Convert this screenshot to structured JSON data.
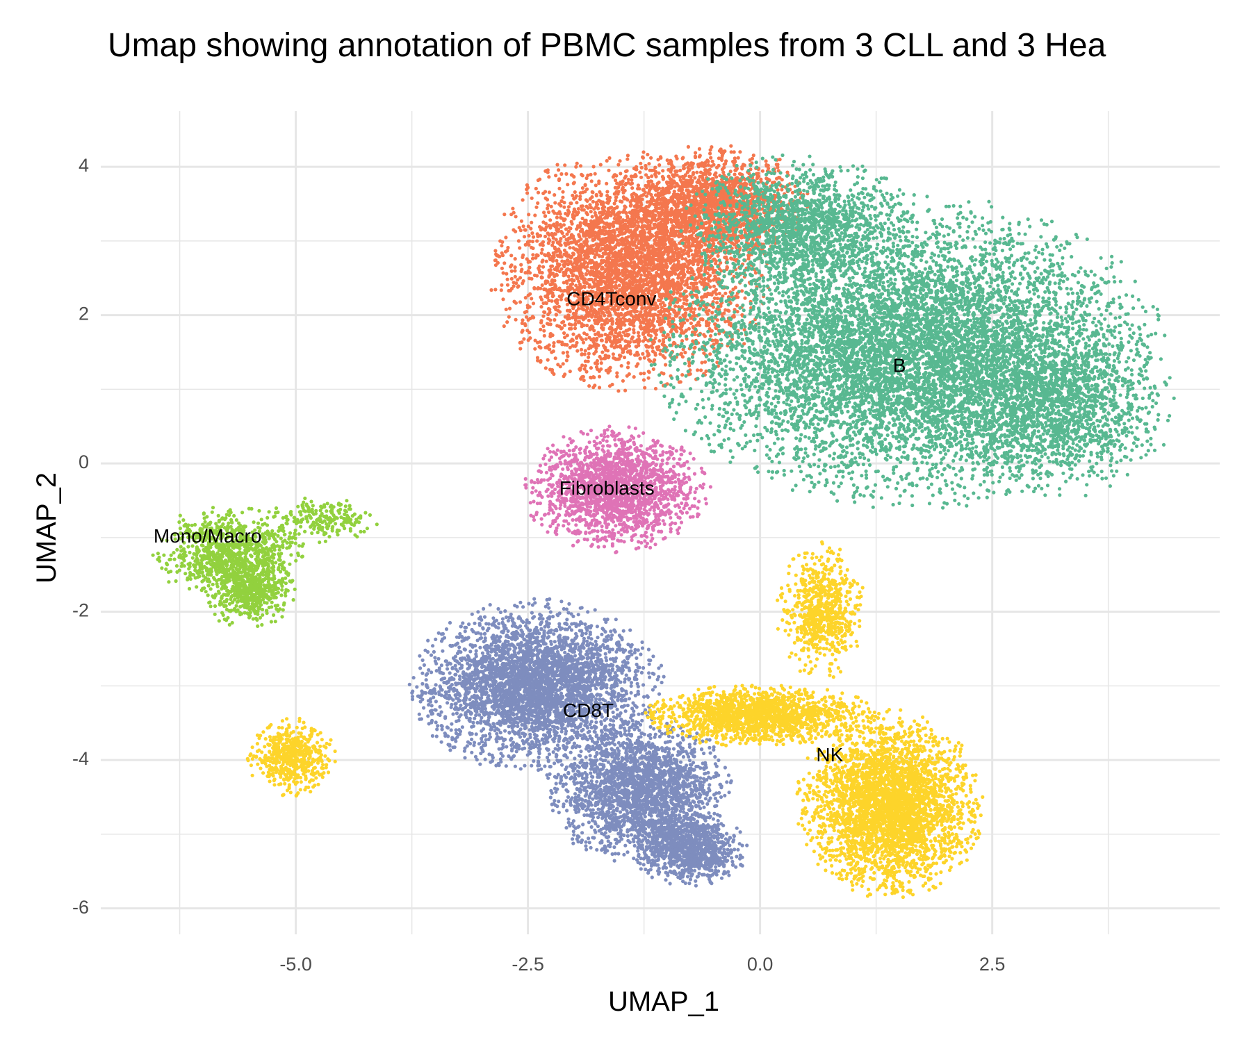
{
  "chart_data": {
    "type": "scatter",
    "title": "Umap showing annotation of PBMC samples from 3 CLL and 3 Hea",
    "xlabel": "UMAP_1",
    "ylabel": "UMAP_2",
    "xlim": [
      -7.1,
      4.95
    ],
    "ylim": [
      -6.35,
      4.75
    ],
    "x_ticks": [
      -5.0,
      -2.5,
      0.0,
      2.5
    ],
    "x_tick_labels": [
      "-5.0",
      "-2.5",
      "0.0",
      "2.5"
    ],
    "y_ticks": [
      -6,
      -4,
      -2,
      0,
      2,
      4
    ],
    "y_tick_labels": [
      "-6",
      "-4",
      "-2",
      "0",
      "2",
      "4"
    ],
    "grid": true,
    "legend": "none",
    "colors": {
      "CD4Tconv": "#F4774E",
      "B": "#58B891",
      "Fibroblasts": "#DF73B6",
      "Mono/Macro": "#92D13E",
      "CD8T": "#7E8DBE",
      "NK": "#FDD42A",
      "grid": "#e6e6e6",
      "axis_text": "#4d4d4d"
    },
    "series": [
      {
        "name": "CD4Tconv",
        "label_pos": [
          -1.6,
          2.2
        ],
        "regions": [
          {
            "cx": -1.4,
            "cy": 2.6,
            "rx": 1.45,
            "ry": 1.55,
            "n": 4200
          },
          {
            "cx": -0.5,
            "cy": 3.5,
            "rx": 1.0,
            "ry": 0.75,
            "n": 1500
          }
        ]
      },
      {
        "name": "B",
        "label_pos": [
          1.5,
          1.3
        ],
        "regions": [
          {
            "cx": 1.6,
            "cy": 1.5,
            "rx": 2.6,
            "ry": 2.0,
            "n": 7500
          },
          {
            "cx": 0.4,
            "cy": 3.2,
            "rx": 1.2,
            "ry": 0.9,
            "n": 1500
          },
          {
            "cx": 3.2,
            "cy": 0.8,
            "rx": 1.2,
            "ry": 1.2,
            "n": 1500
          }
        ]
      },
      {
        "name": "Fibroblasts",
        "label_pos": [
          -1.65,
          -0.35
        ],
        "regions": [
          {
            "cx": -1.55,
            "cy": -0.35,
            "rx": 0.95,
            "ry": 0.8,
            "n": 1900
          }
        ]
      },
      {
        "name": "Mono/Macro",
        "label_pos": [
          -5.95,
          -1.0
        ],
        "regions": [
          {
            "cx": -5.7,
            "cy": -1.2,
            "rx": 0.8,
            "ry": 0.6,
            "n": 900
          },
          {
            "cx": -5.5,
            "cy": -1.7,
            "rx": 0.5,
            "ry": 0.5,
            "n": 500
          },
          {
            "cx": -4.7,
            "cy": -0.75,
            "rx": 0.6,
            "ry": 0.3,
            "n": 200
          }
        ]
      },
      {
        "name": "CD8T",
        "label_pos": [
          -1.85,
          -3.35
        ],
        "regions": [
          {
            "cx": -2.4,
            "cy": -3.0,
            "rx": 1.3,
            "ry": 1.1,
            "n": 3600
          },
          {
            "cx": -1.3,
            "cy": -4.4,
            "rx": 0.95,
            "ry": 0.95,
            "n": 2200
          },
          {
            "cx": -0.75,
            "cy": -5.2,
            "rx": 0.6,
            "ry": 0.5,
            "n": 900
          }
        ]
      },
      {
        "name": "NK",
        "label_pos": [
          0.75,
          -3.95
        ],
        "regions": [
          {
            "cx": 1.4,
            "cy": -4.6,
            "rx": 0.95,
            "ry": 1.2,
            "n": 3300
          },
          {
            "cx": 0.0,
            "cy": -3.4,
            "rx": 1.2,
            "ry": 0.4,
            "n": 1600
          },
          {
            "cx": 0.65,
            "cy": -2.0,
            "rx": 0.45,
            "ry": 0.9,
            "n": 700
          },
          {
            "cx": -5.05,
            "cy": -3.95,
            "rx": 0.45,
            "ry": 0.5,
            "n": 550
          }
        ]
      }
    ]
  }
}
